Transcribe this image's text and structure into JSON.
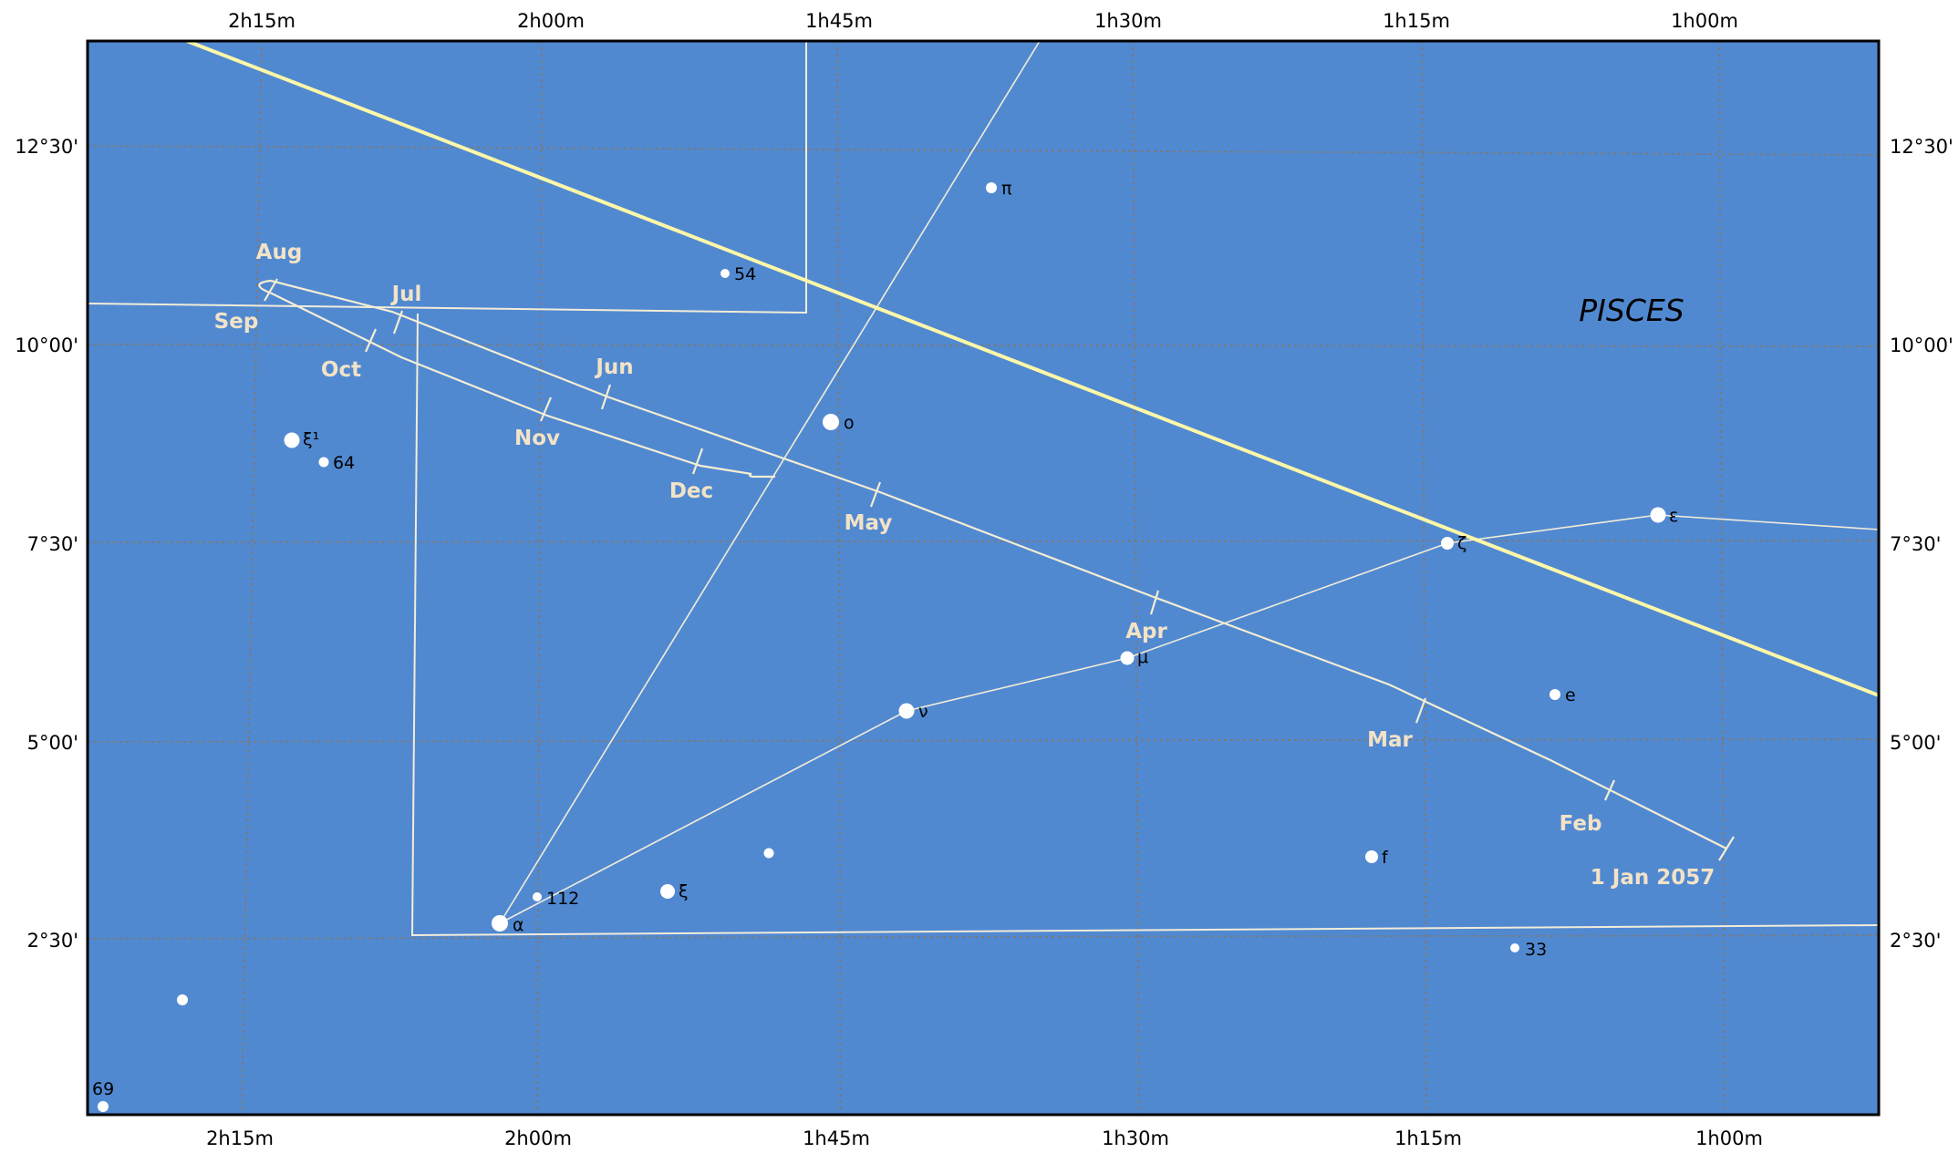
{
  "map": {
    "background_color": "#5189d1",
    "frame_color": "#000000",
    "grid_color": "#7a7a7a",
    "ecliptic_color": "#fff7a8",
    "boundary_color": "#f2ecd8",
    "path_color": "#f4edd3",
    "constellation": "PISCES",
    "ra_labels": [
      "2h15m",
      "2h00m",
      "1h45m",
      "1h30m",
      "1h15m",
      "1h00m"
    ],
    "dec_labels": [
      "12°30'",
      "10°00'",
      "7°30'",
      "5°00'",
      "2°30'"
    ]
  },
  "path": {
    "start_label": "1 Jan 2057",
    "months": [
      "Feb",
      "Mar",
      "Apr",
      "May",
      "Jun",
      "Jul",
      "Aug",
      "Sep",
      "Oct",
      "Nov",
      "Dec"
    ]
  },
  "stars": {
    "pi": "π",
    "s54": "54",
    "omicron": "ο",
    "xi1": "ξ¹",
    "s64": "64",
    "epsilon": "ε",
    "zeta": "ζ",
    "mu": "μ",
    "e": "e",
    "nu": "ν",
    "f": "f",
    "xi": "ξ",
    "s112": "112",
    "alpha": "α",
    "s33": "33",
    "s69": "69"
  }
}
